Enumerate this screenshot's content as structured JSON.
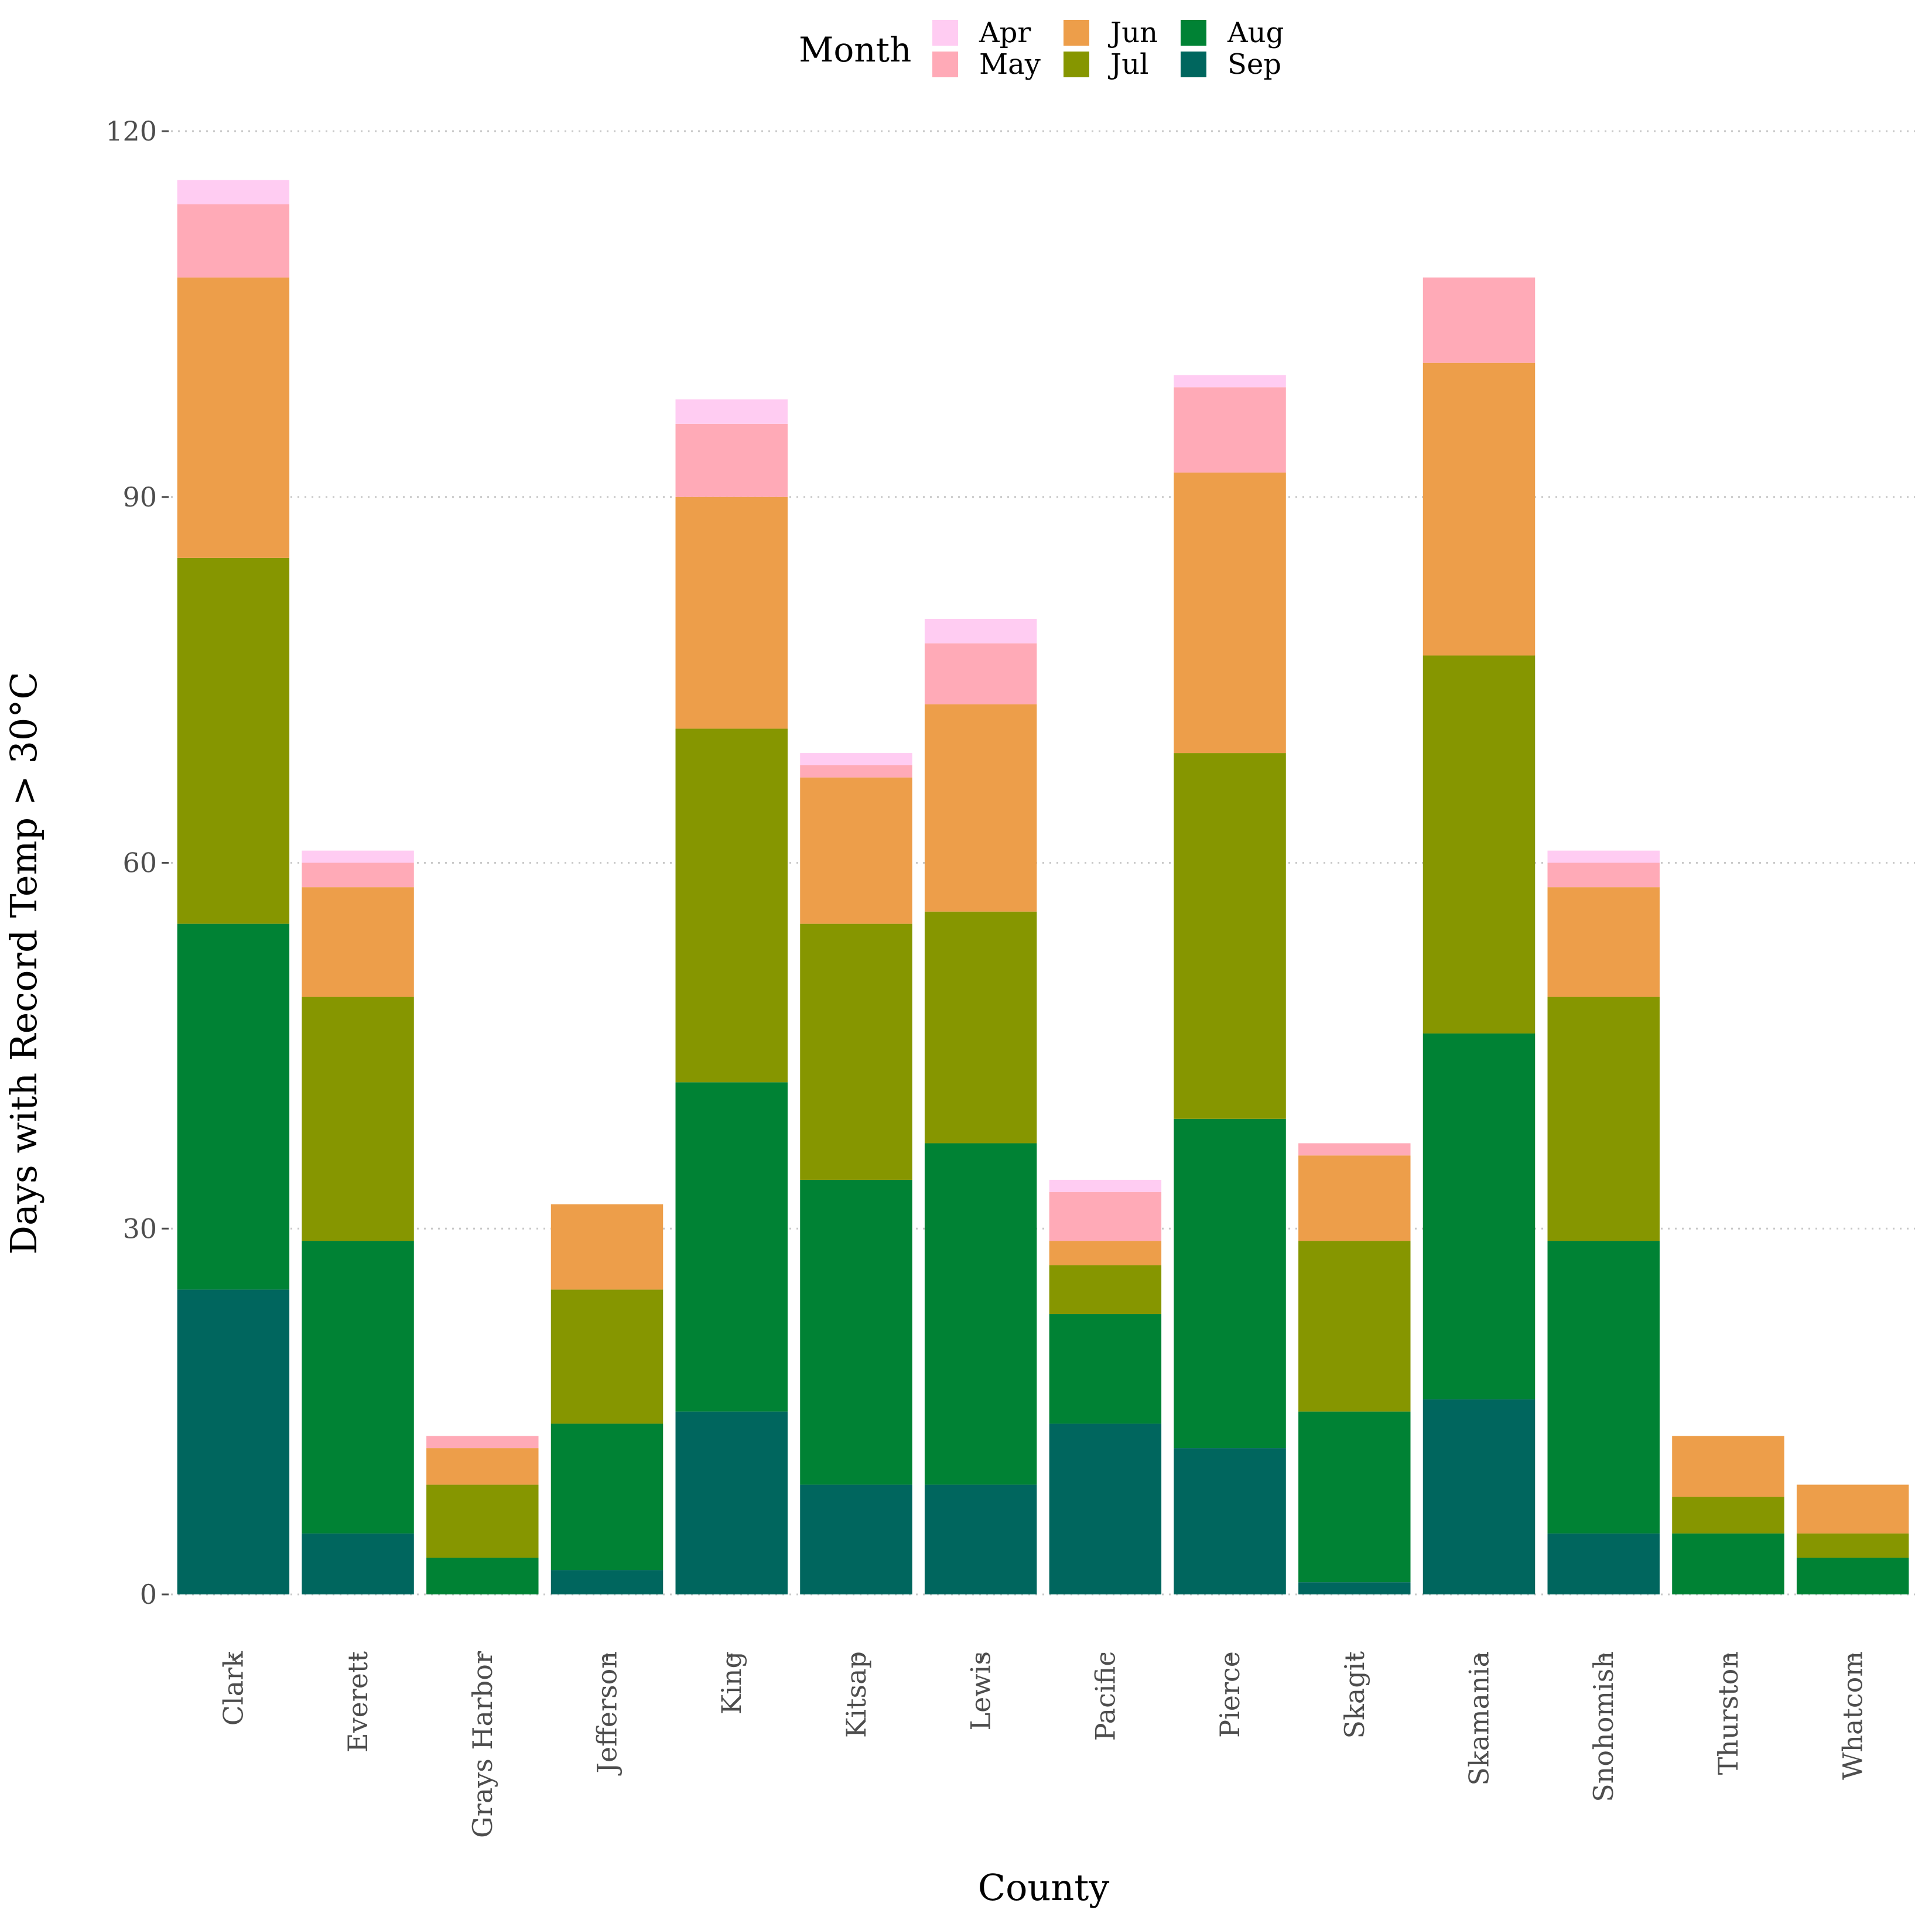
{
  "chart_data": {
    "type": "bar",
    "stacked": true,
    "title": "",
    "xlabel": "County",
    "ylabel": "Days with Record Temp > 30°C",
    "ylim": [
      0,
      120
    ],
    "yticks": [
      0,
      30,
      60,
      90,
      120
    ],
    "grid": true,
    "legend_title": "Month",
    "legend_position": "top",
    "categories": [
      "Clark",
      "Everett",
      "Grays Harbor",
      "Jefferson",
      "King",
      "Kitsap",
      "Lewis",
      "Pacific",
      "Pierce",
      "Skagit",
      "Skamania",
      "Snohomish",
      "Thurston",
      "Whatcom"
    ],
    "stack_order": [
      "Sep",
      "Aug",
      "Jul",
      "Jun",
      "May",
      "Apr"
    ],
    "legend_order": [
      "Apr",
      "May",
      "Jun",
      "Jul",
      "Aug",
      "Sep"
    ],
    "series": [
      {
        "name": "Apr",
        "color": "#ffccf2",
        "values": [
          2,
          1,
          0,
          0,
          2,
          1,
          2,
          1,
          1,
          0,
          0,
          1,
          0,
          0
        ]
      },
      {
        "name": "May",
        "color": "#ffaab7",
        "values": [
          6,
          2,
          1,
          0,
          6,
          1,
          5,
          4,
          7,
          1,
          7,
          2,
          0,
          0
        ]
      },
      {
        "name": "Jun",
        "color": "#ed9e4a",
        "values": [
          23,
          9,
          3,
          7,
          19,
          12,
          17,
          2,
          23,
          7,
          24,
          9,
          5,
          4
        ]
      },
      {
        "name": "Jul",
        "color": "#869600",
        "values": [
          30,
          20,
          6,
          11,
          29,
          21,
          19,
          4,
          30,
          14,
          31,
          20,
          3,
          2
        ]
      },
      {
        "name": "Aug",
        "color": "#008234",
        "values": [
          30,
          24,
          3,
          12,
          27,
          25,
          28,
          9,
          27,
          14,
          30,
          24,
          5,
          3
        ]
      },
      {
        "name": "Sep",
        "color": "#00665e",
        "values": [
          25,
          5,
          0,
          2,
          15,
          9,
          9,
          14,
          12,
          1,
          16,
          5,
          0,
          0
        ]
      }
    ]
  }
}
